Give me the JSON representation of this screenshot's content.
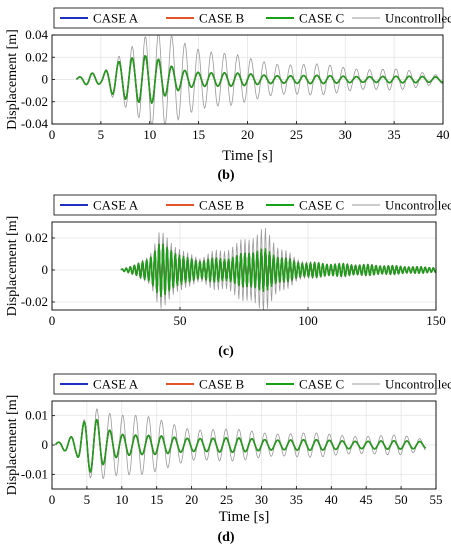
{
  "legend": {
    "entries": [
      {
        "label": "CASE A",
        "color": "#1f2fbf"
      },
      {
        "label": "CASE B",
        "color": "#e2542a"
      },
      {
        "label": "CASE C",
        "color": "#19a019"
      },
      {
        "label": "Uncontrolled",
        "color": "#9a9a9a"
      }
    ]
  },
  "chart_data": [
    {
      "type": "line",
      "panel_label": "(b)",
      "xlabel": "Time [s]",
      "ylabel": "Displacement [m]",
      "xlim": [
        0,
        40
      ],
      "ylim": [
        -0.04,
        0.04
      ],
      "xticks": [
        0,
        5,
        10,
        15,
        20,
        25,
        30,
        35,
        40
      ],
      "yticks": [
        -0.04,
        -0.02,
        0,
        0.02,
        0.04
      ],
      "ytick_labels": [
        "-0.04",
        "-0.02",
        "0",
        "0.02",
        "0.04"
      ],
      "grid": true,
      "legend_position": "top",
      "series": [
        {
          "name": "Uncontrolled",
          "color": "#9a9a9a",
          "start": 2.5,
          "end": 40,
          "period": 1.35,
          "phase": 0.2,
          "spacing": 0.1,
          "amp_knots": [
            [
              2.5,
              0.001
            ],
            [
              4,
              0.006
            ],
            [
              5,
              0.004
            ],
            [
              6.5,
              0.022
            ],
            [
              8,
              0.03
            ],
            [
              10,
              0.038
            ],
            [
              12.5,
              0.038
            ],
            [
              14.5,
              0.033
            ],
            [
              17,
              0.024
            ],
            [
              20,
              0.018
            ],
            [
              25,
              0.014
            ],
            [
              30,
              0.011
            ],
            [
              35,
              0.009
            ],
            [
              40,
              0.004
            ]
          ]
        },
        {
          "name": "CASE A",
          "color": "#1f2fbf",
          "hidden_under": "CASE C",
          "start": 2.5,
          "end": 40,
          "period": 1.35,
          "phase": 0.2,
          "spacing": 0.1,
          "amp_knots": [
            [
              2.5,
              0.001
            ],
            [
              4,
              0.006
            ],
            [
              5,
              0.004
            ],
            [
              6.5,
              0.018
            ],
            [
              8,
              0.02
            ],
            [
              10,
              0.02
            ],
            [
              12,
              0.012
            ],
            [
              14,
              0.008
            ],
            [
              17,
              0.006
            ],
            [
              22,
              0.004
            ],
            [
              30,
              0.003
            ],
            [
              40,
              0.0025
            ]
          ]
        },
        {
          "name": "CASE B",
          "color": "#e2542a",
          "hidden_under": "CASE C",
          "start": 2.5,
          "end": 40,
          "period": 1.35,
          "phase": 0.2,
          "spacing": 0.1,
          "amp_knots": [
            [
              2.5,
              0.001
            ],
            [
              4,
              0.006
            ],
            [
              5,
              0.004
            ],
            [
              6.5,
              0.018
            ],
            [
              8,
              0.02
            ],
            [
              10,
              0.02
            ],
            [
              12,
              0.012
            ],
            [
              14,
              0.008
            ],
            [
              17,
              0.006
            ],
            [
              22,
              0.004
            ],
            [
              30,
              0.003
            ],
            [
              40,
              0.0025
            ]
          ]
        },
        {
          "name": "CASE C",
          "color": "#19a019",
          "start": 2.5,
          "end": 40,
          "period": 1.35,
          "phase": 0.2,
          "spacing": 0.1,
          "amp_knots": [
            [
              2.5,
              0.001
            ],
            [
              4,
              0.006
            ],
            [
              5,
              0.004
            ],
            [
              6.5,
              0.018
            ],
            [
              8,
              0.02
            ],
            [
              10,
              0.02
            ],
            [
              12,
              0.012
            ],
            [
              14,
              0.008
            ],
            [
              17,
              0.006
            ],
            [
              22,
              0.004
            ],
            [
              30,
              0.003
            ],
            [
              40,
              0.0025
            ]
          ]
        }
      ]
    },
    {
      "type": "line",
      "panel_label": "(c)",
      "xlabel": "",
      "ylabel": "Displacement [m]",
      "xlim": [
        0,
        150
      ],
      "ylim": [
        -0.025,
        0.03
      ],
      "xticks": [
        0,
        50,
        100,
        150
      ],
      "yticks": [
        -0.02,
        0,
        0.02
      ],
      "ytick_labels": [
        "-0.02",
        "0",
        "0.02"
      ],
      "grid": true,
      "legend_position": "top",
      "series": [
        {
          "name": "Uncontrolled",
          "color": "#9a9a9a",
          "start": 27,
          "end": 150,
          "period": 1.6,
          "phase": 0.1,
          "spacing": 0.2,
          "amp_knots": [
            [
              27,
              0.0005
            ],
            [
              33,
              0.003
            ],
            [
              38,
              0.01
            ],
            [
              42,
              0.022
            ],
            [
              47,
              0.018
            ],
            [
              52,
              0.01
            ],
            [
              58,
              0.008
            ],
            [
              65,
              0.012
            ],
            [
              72,
              0.015
            ],
            [
              78,
              0.022
            ],
            [
              83,
              0.024
            ],
            [
              88,
              0.016
            ],
            [
              95,
              0.007
            ],
            [
              105,
              0.004
            ],
            [
              115,
              0.004
            ],
            [
              125,
              0.003
            ],
            [
              140,
              0.002
            ],
            [
              150,
              0.0015
            ]
          ]
        },
        {
          "name": "CASE A",
          "color": "#1f2fbf",
          "hidden_under": "CASE C",
          "start": 27,
          "end": 150,
          "period": 1.6,
          "phase": 0.1,
          "spacing": 0.2,
          "amp_knots": [
            [
              27,
              0.0005
            ],
            [
              33,
              0.003
            ],
            [
              38,
              0.008
            ],
            [
              42,
              0.015
            ],
            [
              47,
              0.013
            ],
            [
              52,
              0.007
            ],
            [
              58,
              0.006
            ],
            [
              65,
              0.007
            ],
            [
              72,
              0.008
            ],
            [
              78,
              0.012
            ],
            [
              83,
              0.012
            ],
            [
              88,
              0.009
            ],
            [
              95,
              0.005
            ],
            [
              105,
              0.004
            ],
            [
              115,
              0.0035
            ],
            [
              125,
              0.003
            ],
            [
              140,
              0.002
            ],
            [
              150,
              0.0015
            ]
          ]
        },
        {
          "name": "CASE B",
          "color": "#e2542a",
          "hidden_under": "CASE C",
          "start": 27,
          "end": 150,
          "period": 1.6,
          "phase": 0.1,
          "spacing": 0.2,
          "amp_knots": [
            [
              27,
              0.0005
            ],
            [
              33,
              0.003
            ],
            [
              38,
              0.008
            ],
            [
              42,
              0.015
            ],
            [
              47,
              0.013
            ],
            [
              52,
              0.007
            ],
            [
              58,
              0.006
            ],
            [
              65,
              0.007
            ],
            [
              72,
              0.008
            ],
            [
              78,
              0.012
            ],
            [
              83,
              0.012
            ],
            [
              88,
              0.009
            ],
            [
              95,
              0.005
            ],
            [
              105,
              0.004
            ],
            [
              115,
              0.0035
            ],
            [
              125,
              0.003
            ],
            [
              140,
              0.002
            ],
            [
              150,
              0.0015
            ]
          ]
        },
        {
          "name": "CASE C",
          "color": "#19a019",
          "start": 27,
          "end": 150,
          "period": 1.6,
          "phase": 0.1,
          "spacing": 0.2,
          "amp_knots": [
            [
              27,
              0.0005
            ],
            [
              33,
              0.003
            ],
            [
              38,
              0.008
            ],
            [
              42,
              0.015
            ],
            [
              47,
              0.013
            ],
            [
              52,
              0.007
            ],
            [
              58,
              0.006
            ],
            [
              65,
              0.007
            ],
            [
              72,
              0.008
            ],
            [
              78,
              0.012
            ],
            [
              83,
              0.012
            ],
            [
              88,
              0.009
            ],
            [
              95,
              0.005
            ],
            [
              105,
              0.004
            ],
            [
              115,
              0.0035
            ],
            [
              125,
              0.003
            ],
            [
              140,
              0.002
            ],
            [
              150,
              0.0015
            ]
          ]
        }
      ]
    },
    {
      "type": "line",
      "panel_label": "(d)",
      "xlabel": "Time [s]",
      "ylabel": "Displacement [m]",
      "xlim": [
        0,
        55
      ],
      "ylim": [
        -0.015,
        0.015
      ],
      "xticks": [
        0,
        5,
        10,
        15,
        20,
        25,
        30,
        35,
        40,
        45,
        50,
        55
      ],
      "yticks": [
        -0.01,
        0,
        0.01
      ],
      "ytick_labels": [
        "-0.01",
        "0",
        "0.01"
      ],
      "grid": true,
      "legend_position": "top",
      "series": [
        {
          "name": "Uncontrolled",
          "color": "#9a9a9a",
          "start": 0.5,
          "end": 53.5,
          "period": 1.85,
          "phase": 0.3,
          "spacing": 0.1,
          "amp_knots": [
            [
              0.5,
              0.0005
            ],
            [
              2,
              0.002
            ],
            [
              3.5,
              0.003
            ],
            [
              5,
              0.01
            ],
            [
              6.5,
              0.013
            ],
            [
              9,
              0.012
            ],
            [
              12,
              0.01
            ],
            [
              15,
              0.008
            ],
            [
              20,
              0.006
            ],
            [
              25,
              0.005
            ],
            [
              30,
              0.0045
            ],
            [
              40,
              0.0035
            ],
            [
              50,
              0.003
            ],
            [
              53.5,
              0.002
            ]
          ]
        },
        {
          "name": "CASE A",
          "color": "#1f2fbf",
          "hidden_under": "CASE C",
          "start": 0.5,
          "end": 53.5,
          "period": 1.85,
          "phase": 0.3,
          "spacing": 0.1,
          "amp_knots": [
            [
              0.5,
              0.0005
            ],
            [
              2,
              0.002
            ],
            [
              3.5,
              0.003
            ],
            [
              5,
              0.009
            ],
            [
              6.5,
              0.009
            ],
            [
              8,
              0.006
            ],
            [
              10,
              0.004
            ],
            [
              13,
              0.003
            ],
            [
              20,
              0.0025
            ],
            [
              30,
              0.002
            ],
            [
              40,
              0.0015
            ],
            [
              53.5,
              0.0012
            ]
          ]
        },
        {
          "name": "CASE B",
          "color": "#e2542a",
          "hidden_under": "CASE C",
          "start": 0.5,
          "end": 53.5,
          "period": 1.85,
          "phase": 0.3,
          "spacing": 0.1,
          "amp_knots": [
            [
              0.5,
              0.0005
            ],
            [
              2,
              0.002
            ],
            [
              3.5,
              0.003
            ],
            [
              5,
              0.009
            ],
            [
              6.5,
              0.009
            ],
            [
              8,
              0.006
            ],
            [
              10,
              0.004
            ],
            [
              13,
              0.003
            ],
            [
              20,
              0.0025
            ],
            [
              30,
              0.002
            ],
            [
              40,
              0.0015
            ],
            [
              53.5,
              0.0012
            ]
          ]
        },
        {
          "name": "CASE C",
          "color": "#19a019",
          "start": 0.5,
          "end": 53.5,
          "period": 1.85,
          "phase": 0.3,
          "spacing": 0.1,
          "amp_knots": [
            [
              0.5,
              0.0005
            ],
            [
              2,
              0.002
            ],
            [
              3.5,
              0.003
            ],
            [
              5,
              0.009
            ],
            [
              6.5,
              0.009
            ],
            [
              8,
              0.006
            ],
            [
              10,
              0.004
            ],
            [
              13,
              0.003
            ],
            [
              20,
              0.0025
            ],
            [
              30,
              0.002
            ],
            [
              40,
              0.0015
            ],
            [
              53.5,
              0.0012
            ]
          ]
        }
      ]
    }
  ]
}
